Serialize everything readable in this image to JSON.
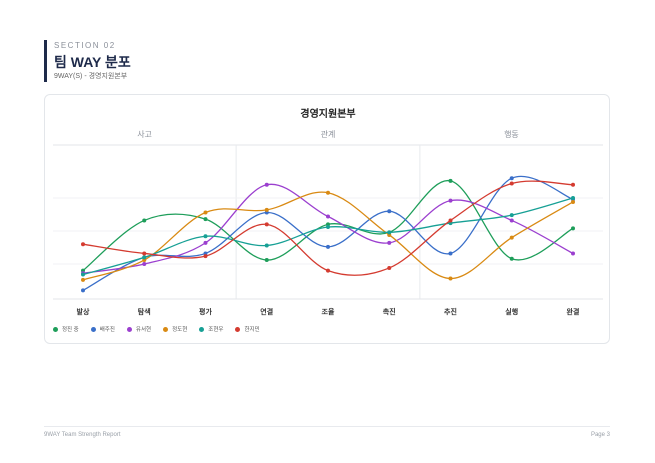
{
  "header": {
    "section": "SECTION 02",
    "title": "팀 WAY 분포",
    "subtitle": "9WAY(S) - 경영지원본부"
  },
  "footer": {
    "left": "9WAY Team Strength Report",
    "right": "Page 3"
  },
  "chart_data": {
    "type": "line",
    "title": "경영지원본부",
    "groups": [
      {
        "label": "사고",
        "span": [
          0,
          2
        ]
      },
      {
        "label": "관계",
        "span": [
          3,
          5
        ]
      },
      {
        "label": "행동",
        "span": [
          6,
          8
        ]
      }
    ],
    "categories": [
      "발상",
      "탐색",
      "평가",
      "연결",
      "조율",
      "촉진",
      "추진",
      "실행",
      "완결"
    ],
    "ylim": [
      0,
      100
    ],
    "grid": true,
    "curve": "smooth",
    "legend_position": "bottom-left",
    "series": [
      {
        "name": "정진 중",
        "color": "#1e9e5a",
        "values": [
          20,
          58,
          59,
          28,
          55,
          49,
          88,
          29,
          52
        ]
      },
      {
        "name": "배주진",
        "color": "#3a6fc9",
        "values": [
          5,
          30,
          33,
          64,
          38,
          65,
          33,
          90,
          74
        ]
      },
      {
        "name": "유서현",
        "color": "#9b3fcf",
        "values": [
          18,
          25,
          41,
          85,
          61,
          41,
          73,
          58,
          33
        ]
      },
      {
        "name": "정도현",
        "color": "#d98a13",
        "values": [
          13,
          28,
          64,
          66,
          79,
          47,
          14,
          45,
          72
        ]
      },
      {
        "name": "조현우",
        "color": "#17a095",
        "values": [
          17,
          30,
          46,
          39,
          53,
          49,
          56,
          62,
          75
        ]
      },
      {
        "name": "한지민",
        "color": "#d43b30",
        "values": [
          40,
          33,
          31,
          55,
          20,
          22,
          58,
          86,
          85
        ]
      }
    ]
  }
}
